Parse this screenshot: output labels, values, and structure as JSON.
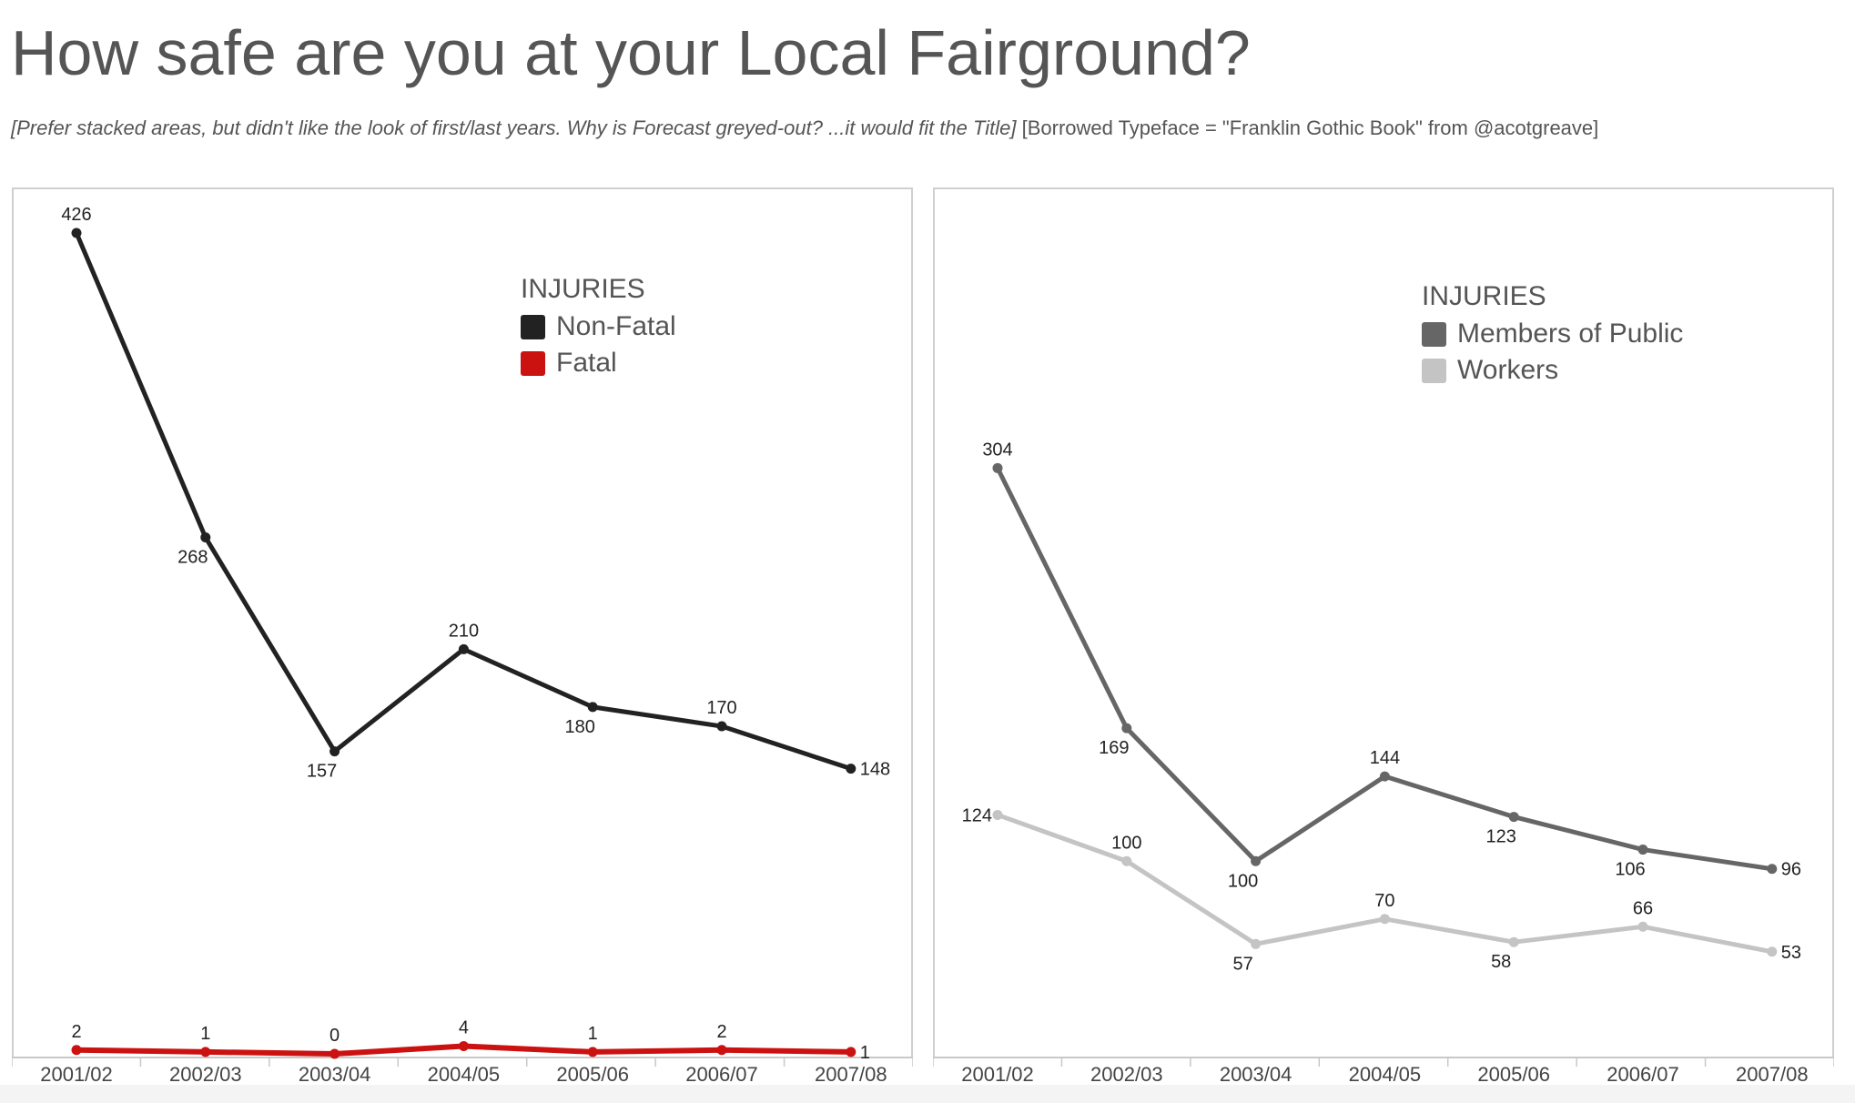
{
  "title": "How safe are you at your Local Fairground?",
  "subtitle": {
    "italic": "[Prefer stacked areas, but didn't like the look of first/last years. Why is Forecast greyed-out? ...it would fit the Title]",
    "plain": " [Borrowed Typeface = \"Franklin Gothic Book\" from @acotgreave]"
  },
  "chart_data": [
    {
      "type": "line",
      "categories": [
        "2001/02",
        "2002/03",
        "2003/04",
        "2004/05",
        "2005/06",
        "2006/07",
        "2007/08"
      ],
      "ylim": [
        0,
        426
      ],
      "grid": false,
      "legend": {
        "title": "INJURIES",
        "placement": "top-right"
      },
      "series": [
        {
          "name": "Non-Fatal",
          "color": "#222222",
          "values": [
            426,
            268,
            157,
            210,
            180,
            170,
            148
          ]
        },
        {
          "name": "Fatal",
          "color": "#cc1111",
          "values": [
            2,
            1,
            0,
            4,
            1,
            2,
            1
          ]
        }
      ]
    },
    {
      "type": "line",
      "categories": [
        "2001/02",
        "2002/03",
        "2003/04",
        "2004/05",
        "2005/06",
        "2006/07",
        "2007/08"
      ],
      "ylim": [
        0,
        426
      ],
      "grid": false,
      "legend": {
        "title": "INJURIES",
        "placement": "top-right"
      },
      "series": [
        {
          "name": "Members of Public",
          "color": "#666666",
          "values": [
            304,
            169,
            100,
            144,
            123,
            106,
            96
          ]
        },
        {
          "name": "Workers",
          "color": "#c4c4c4",
          "values": [
            124,
            100,
            57,
            70,
            58,
            66,
            53
          ]
        }
      ]
    }
  ]
}
